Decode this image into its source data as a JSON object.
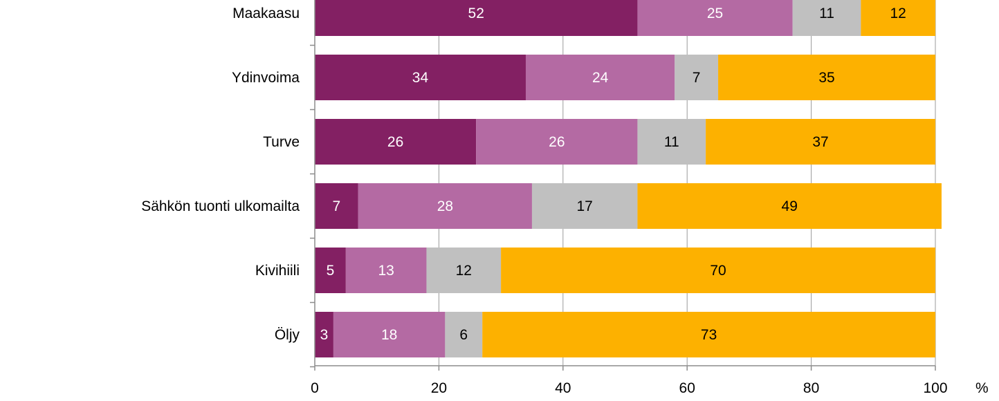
{
  "chart_data": {
    "type": "bar",
    "orientation": "horizontal",
    "stacked": true,
    "categories": [
      "Maakaasu",
      "Ydinvoima",
      "Turve",
      "Sähkön tuonti ulkomailta",
      "Kivihiili",
      "Öljy"
    ],
    "series": [
      {
        "color": "#832063",
        "label_color": "#ffffff",
        "values": [
          52,
          34,
          26,
          7,
          5,
          3
        ]
      },
      {
        "color": "#b46aa3",
        "label_color": "#ffffff",
        "values": [
          25,
          24,
          26,
          28,
          13,
          18
        ]
      },
      {
        "color": "#c0c0c0",
        "label_color": "#000000",
        "values": [
          11,
          7,
          11,
          17,
          12,
          6
        ]
      },
      {
        "color": "#fdb100",
        "label_color": "#000000",
        "values": [
          12,
          35,
          37,
          49,
          70,
          73
        ]
      }
    ],
    "xlim": [
      0,
      100
    ],
    "xticks": [
      "0",
      "20",
      "40",
      "60",
      "80",
      "100"
    ],
    "xunit": "%",
    "grid": true,
    "legend": "none"
  }
}
